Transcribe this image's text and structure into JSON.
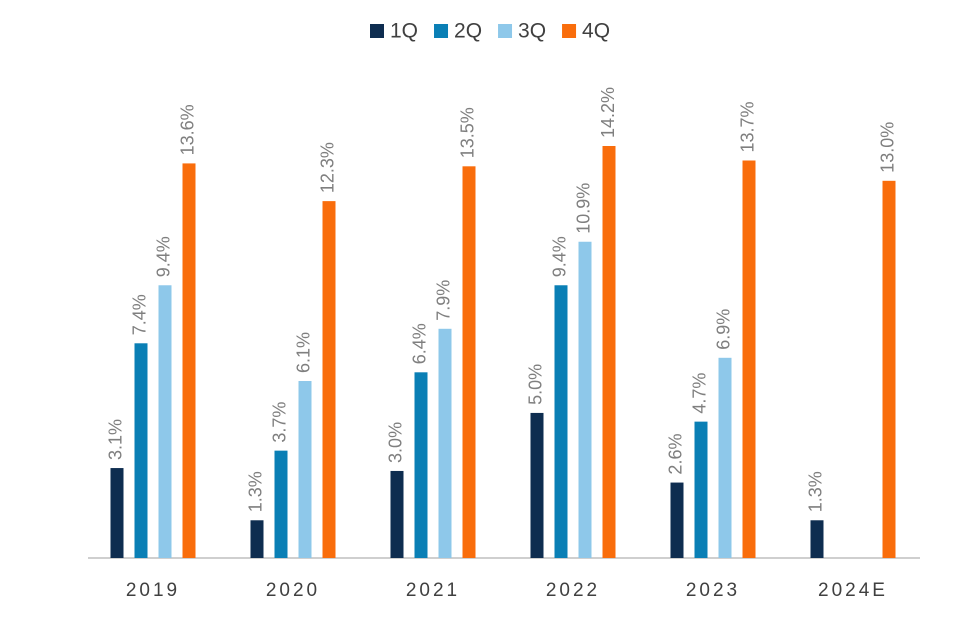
{
  "chart_data": {
    "type": "bar",
    "categories": [
      "2019",
      "2020",
      "2021",
      "2022",
      "2023",
      "2024E"
    ],
    "series": [
      {
        "name": "1Q",
        "color": "#0e2d50",
        "values": [
          3.1,
          1.3,
          3.0,
          5.0,
          2.6,
          1.3
        ],
        "value_labels": [
          "3.1%",
          "1.3%",
          "3.0%",
          "5.0%",
          "2.6%",
          "1.3%"
        ]
      },
      {
        "name": "2Q",
        "color": "#0a7fb5",
        "values": [
          7.4,
          3.7,
          6.4,
          9.4,
          4.7,
          null
        ],
        "value_labels": [
          "7.4%",
          "3.7%",
          "6.4%",
          "9.4%",
          "4.7%",
          null
        ]
      },
      {
        "name": "3Q",
        "color": "#8ec8ea",
        "values": [
          9.4,
          6.1,
          7.9,
          10.9,
          6.9,
          null
        ],
        "value_labels": [
          "9.4%",
          "6.1%",
          "7.9%",
          "10.9%",
          "6.9%",
          null
        ]
      },
      {
        "name": "4Q",
        "color": "#f96d0c",
        "values": [
          13.6,
          12.3,
          13.5,
          14.2,
          13.7,
          13.0
        ],
        "value_labels": [
          "13.6%",
          "12.3%",
          "13.5%",
          "14.2%",
          "13.7%",
          "13.0%"
        ]
      }
    ],
    "legend": "top"
  }
}
